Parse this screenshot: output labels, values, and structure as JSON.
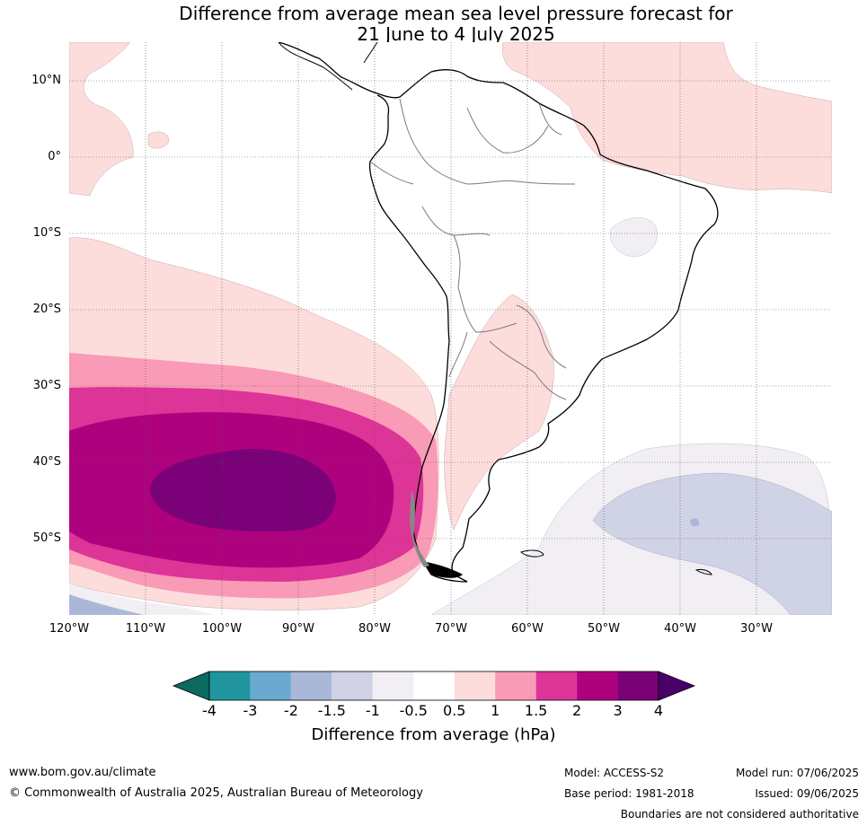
{
  "title": {
    "line1": "Difference from average mean sea level pressure forecast for",
    "line2": "21 June to 4 July 2025"
  },
  "map": {
    "lat_labels": [
      "10°N",
      "0°",
      "10°S",
      "20°S",
      "30°S",
      "40°S",
      "50°S"
    ],
    "lon_labels": [
      "120°W",
      "110°W",
      "100°W",
      "90°W",
      "80°W",
      "70°W",
      "60°W",
      "50°W",
      "40°W",
      "30°W"
    ],
    "extent": {
      "lon": [
        -120,
        -20
      ],
      "lat": [
        -60,
        15
      ]
    }
  },
  "colorbar": {
    "tick_labels": [
      "-4",
      "-3",
      "-2",
      "-1.5",
      "-1",
      "-0.5",
      "0.5",
      "1",
      "1.5",
      "2",
      "3",
      "4"
    ],
    "colors": [
      "#0c6b5e",
      "#2095a0",
      "#6aaad2",
      "#a9b8d8",
      "#d0d2e6",
      "#f1eef4",
      "#ffffff",
      "#fddcdc",
      "#f99ab6",
      "#dd3497",
      "#ae017e",
      "#7a0177",
      "#49006a"
    ],
    "label": "Difference from average (hPa)"
  },
  "footer": {
    "website": "www.bom.gov.au/climate",
    "copyright": "© Commonwealth of Australia 2025, Australian Bureau of Meteorology",
    "model": "Model: ACCESS-S2",
    "base_period": "Base period: 1981-2018",
    "model_run": "Model run: 07/06/2025",
    "issued": "Issued: 09/06/2025",
    "disclaimer": "Boundaries are not considered authoritative"
  }
}
